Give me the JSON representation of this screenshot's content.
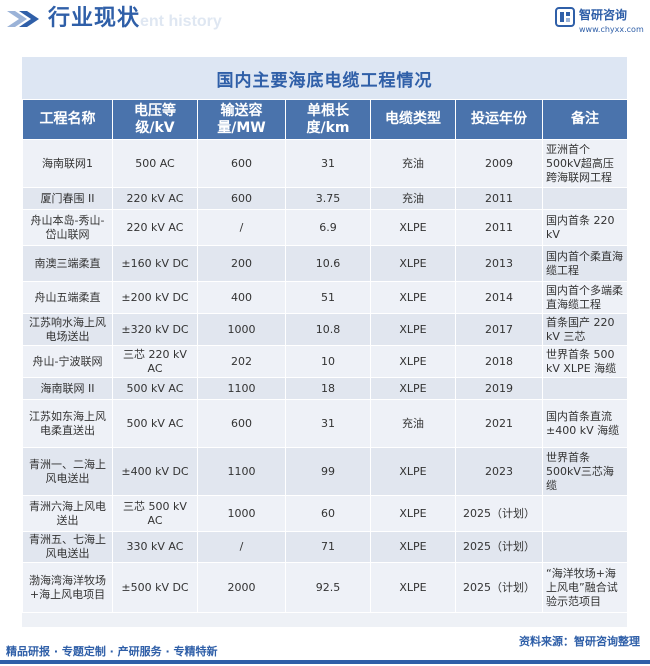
{
  "header": {
    "title": "行业现状",
    "watermark": "ent history",
    "brand_name": "智研咨询",
    "brand_url": "www.chyxx.com"
  },
  "table": {
    "title": "国内主要海底电缆工程情况",
    "columns": [
      "工程名称",
      "电压等级/kV",
      "输送容量/MW",
      "单根长度/km",
      "电缆类型",
      "投运年份",
      "备注"
    ],
    "rows": [
      {
        "name": "海南联网1",
        "voltage": "500 AC",
        "capacity": "600",
        "length": "31",
        "type": "充油",
        "year": "2009",
        "note": "亚洲首个500kV超高压跨海联网工程"
      },
      {
        "name": "厦门春围 II",
        "voltage": "220 kV AC",
        "capacity": "600",
        "length": "3.75",
        "type": "充油",
        "year": "2011",
        "note": ""
      },
      {
        "name": "舟山本岛-秀山-岱山联网",
        "voltage": "220 kV AC",
        "capacity": "/",
        "length": "6.9",
        "type": "XLPE",
        "year": "2011",
        "note": "国内首条 220 kV"
      },
      {
        "name": "南澳三端柔直",
        "voltage": "±160 kV DC",
        "capacity": "200",
        "length": "10.6",
        "type": "XLPE",
        "year": "2013",
        "note": "国内首个柔直海缆工程"
      },
      {
        "name": "舟山五端柔直",
        "voltage": "±200 kV DC",
        "capacity": "400",
        "length": "51",
        "type": "XLPE",
        "year": "2014",
        "note": "国内首个多端柔直海缆工程"
      },
      {
        "name": "江苏响水海上风电场送出",
        "voltage": "±320 kV DC",
        "capacity": "1000",
        "length": "10.8",
        "type": "XLPE",
        "year": "2017",
        "note": "首条国产 220 kV 三芯"
      },
      {
        "name": "舟山-宁波联网",
        "voltage": "三芯 220 kV AC",
        "capacity": "202",
        "length": "10",
        "type": "XLPE",
        "year": "2018",
        "note": "世界首条 500 kV XLPE 海缆"
      },
      {
        "name": "海南联网 II",
        "voltage": "500 kV AC",
        "capacity": "1100",
        "length": "18",
        "type": "XLPE",
        "year": "2019",
        "note": ""
      },
      {
        "name": "江苏如东海上风电柔直送出",
        "voltage": "500 kV AC",
        "capacity": "600",
        "length": "31",
        "type": "充油",
        "year": "2021",
        "note": "国内首条直流±400 kV 海缆"
      },
      {
        "name": "青洲一、二海上风电送出",
        "voltage": "±400 kV DC",
        "capacity": "1100",
        "length": "99",
        "type": "XLPE",
        "year": "2023",
        "note": "世界首条500kV三芯海缆"
      },
      {
        "name": "青洲六海上风电送出",
        "voltage": "三芯 500 kV AC",
        "capacity": "1000",
        "length": "60",
        "type": "XLPE",
        "year": "2025（计划）",
        "note": ""
      },
      {
        "name": "青洲五、七海上风电送出",
        "voltage": "330 kV AC",
        "capacity": "/",
        "length": "71",
        "type": "XLPE",
        "year": "2025（计划）",
        "note": ""
      },
      {
        "name": "渤海湾海洋牧场+海上风电项目",
        "voltage": "±500 kV DC",
        "capacity": "2000",
        "length": "92.5",
        "type": "XLPE",
        "year": "2025（计划）",
        "note": "“海洋牧场+海上风电”融合试验示范项目"
      }
    ]
  },
  "footer": {
    "left": "精品研报 · 专题定制 · 产研服务 · 专精特新",
    "right": "资料来源：智研咨询整理"
  },
  "colors": {
    "accent": "#2f5fa8",
    "header_cell": "#4a73ac",
    "title_band": "#dde6f3"
  }
}
